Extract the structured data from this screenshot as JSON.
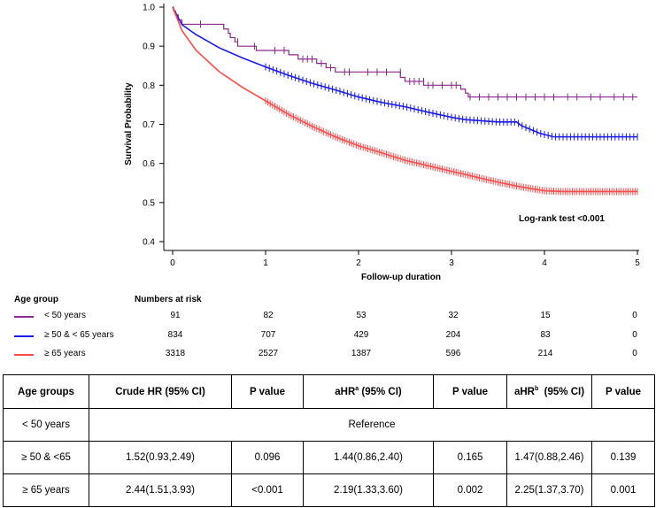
{
  "chart_data": {
    "type": "line",
    "title": "",
    "xlabel": "Follow-up duration",
    "ylabel": "Survival Probability",
    "xlim": [
      0,
      5
    ],
    "ylim": [
      0.4,
      1.0
    ],
    "xticks": [
      "0",
      "1",
      "2",
      "3",
      "4",
      "5"
    ],
    "yticks": [
      "0.4",
      "0.5",
      "0.6",
      "0.7",
      "0.8",
      "0.9",
      "1.0"
    ],
    "annotation": "Log-rank test <0.001",
    "grid": false,
    "series": [
      {
        "name": "< 50 years",
        "color": "#8b2a8b",
        "style": "step",
        "x": [
          0,
          0.01,
          0.03,
          0.06,
          0.1,
          0.55,
          0.6,
          0.62,
          0.67,
          0.7,
          0.9,
          1.25,
          1.35,
          1.55,
          1.65,
          1.75,
          2.0,
          2.3,
          2.45,
          2.5,
          2.7,
          2.85,
          3.1,
          3.15,
          3.18,
          5.0
        ],
        "y": [
          1.0,
          0.99,
          0.98,
          0.967,
          0.956,
          0.944,
          0.933,
          0.922,
          0.911,
          0.9,
          0.889,
          0.878,
          0.867,
          0.856,
          0.845,
          0.834,
          0.834,
          0.834,
          0.82,
          0.81,
          0.8,
          0.8,
          0.79,
          0.78,
          0.77,
          0.77
        ],
        "censor_x": [
          0.3,
          0.7,
          0.88,
          1.1,
          1.2,
          1.4,
          1.45,
          1.5,
          1.6,
          1.7,
          1.85,
          1.9,
          2.1,
          2.2,
          2.3,
          2.45,
          2.55,
          2.6,
          2.65,
          2.7,
          2.75,
          2.8,
          2.9,
          3.0,
          3.05,
          3.2,
          3.3,
          3.4,
          3.5,
          3.6,
          3.7,
          3.8,
          3.9,
          4.0,
          4.1,
          4.25,
          4.35,
          4.5,
          4.6,
          4.75,
          4.85,
          4.95
        ]
      },
      {
        "name": "≥ 50 & < 65 years",
        "color": "#1a1aee",
        "style": "smooth",
        "x": [
          0,
          0.1,
          0.25,
          0.5,
          0.75,
          1.0,
          1.25,
          1.5,
          1.75,
          2.0,
          2.25,
          2.5,
          2.75,
          3.0,
          3.15,
          3.5,
          3.7,
          3.75,
          3.85,
          3.95,
          4.1,
          5.0
        ],
        "y": [
          1.0,
          0.955,
          0.93,
          0.896,
          0.87,
          0.847,
          0.825,
          0.805,
          0.788,
          0.77,
          0.756,
          0.745,
          0.731,
          0.718,
          0.712,
          0.706,
          0.706,
          0.697,
          0.687,
          0.677,
          0.668,
          0.668
        ],
        "censor_step": 0.04,
        "censor_start": 1.0,
        "censor_end": 5.0
      },
      {
        "name": "≥ 65 years",
        "color": "#ff4a4a",
        "style": "smooth",
        "x": [
          0,
          0.1,
          0.25,
          0.5,
          0.75,
          1.0,
          1.25,
          1.5,
          1.75,
          2.0,
          2.25,
          2.5,
          2.75,
          3.0,
          3.25,
          3.5,
          3.75,
          4.0,
          4.2,
          5.0
        ],
        "y": [
          1.0,
          0.94,
          0.89,
          0.835,
          0.795,
          0.76,
          0.725,
          0.695,
          0.668,
          0.645,
          0.627,
          0.608,
          0.594,
          0.58,
          0.566,
          0.552,
          0.54,
          0.53,
          0.528,
          0.528
        ],
        "censor_step": 0.025,
        "censor_start": 1.0,
        "censor_end": 5.0
      }
    ]
  },
  "risk_table": {
    "group_header": "Age group",
    "numbers_header": "Numbers at risk",
    "rows": [
      {
        "label": "<  50 years",
        "color": "#8b2a8b",
        "values": [
          "91",
          "82",
          "53",
          "32",
          "15",
          "0"
        ]
      },
      {
        "label": "≥ 50 & < 65 years",
        "color": "#1a1aee",
        "values": [
          "834",
          "707",
          "429",
          "204",
          "83",
          "0"
        ]
      },
      {
        "label": "≥  65 years",
        "color": "#ff4a4a",
        "values": [
          "3318",
          "2527",
          "1387",
          "596",
          "214",
          "0"
        ]
      }
    ]
  },
  "hr_table": {
    "headers": {
      "age_groups": "Age groups",
      "crude_hr": "Crude HR (95% CI)",
      "p1": "P value",
      "ahr_a_base": "aHR",
      "ahr_a_sup": "a",
      "ahr_a_ci": " (95% CI)",
      "p2": "P value",
      "ahr_b_base": "aHR",
      "ahr_b_sup": "b",
      "ahr_b_ci": "  (95% CI)",
      "p3": "P value"
    },
    "reference_row": {
      "group": "< 50 years",
      "text": "Reference"
    },
    "rows": [
      {
        "group": "≥ 50 & <65",
        "crude": "1.52(0.93,2.49)",
        "p1": "0.096",
        "ahr_a": "1.44(0.86,2.40)",
        "p2": "0.165",
        "ahr_b": "1.47(0.88,2.46)",
        "p3": "0.139"
      },
      {
        "group": "≥ 65 years",
        "crude": "2.44(1.51,3.93)",
        "p1": "<0.001",
        "ahr_a": "2.19(1.33,3.60)",
        "p2": "0.002",
        "ahr_b": "2.25(1.37,3.70)",
        "p3": "0.001"
      }
    ]
  }
}
